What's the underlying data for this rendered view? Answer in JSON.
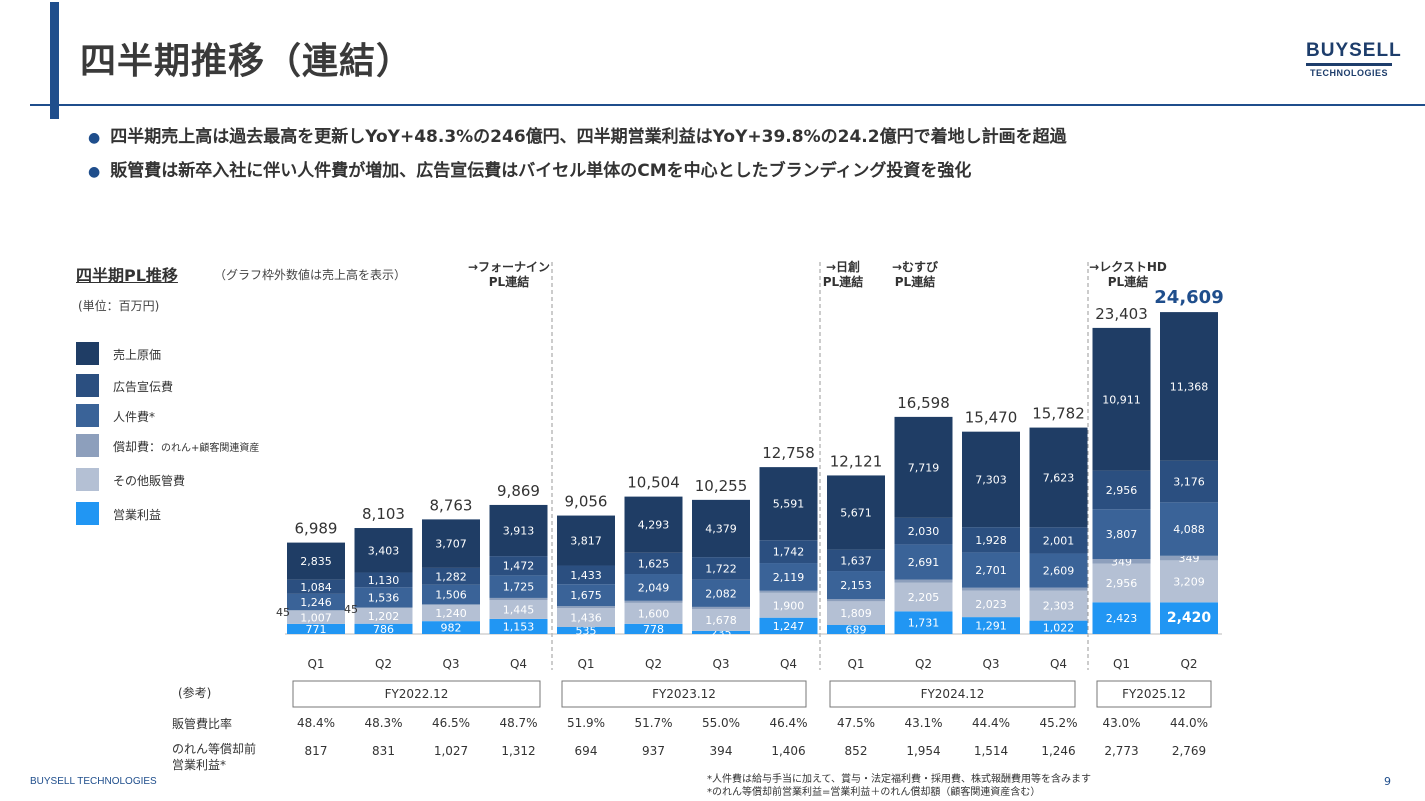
{
  "header": {
    "title": "四半期推移（連結）"
  },
  "logo": {
    "line1": "BUYSELL",
    "line2": "TECHNOLOGIES"
  },
  "bullets": [
    "四半期売上高は過去最高を更新しYoY+48.3%の246億円、四半期営業利益はYoY+39.8%の24.2億円で着地し計画を超過",
    "販管費は新卒入社に伴い人件費が増加、広告宣伝費はバイセル単体のCMを中心としたブランディング投資を強化"
  ],
  "chart_header": {
    "title": "四半期PL推移",
    "note": "（グラフ枠外数値は売上高を表示）",
    "unit": "(単位：百万円)"
  },
  "legend": [
    {
      "label": "売上原価",
      "color": "#1f3d65"
    },
    {
      "label": "広告宣伝費",
      "color": "#2b4f80"
    },
    {
      "label": "人件費*",
      "color": "#3a6398"
    },
    {
      "label": "償却費：",
      "sub": "のれん+顧客関連資産",
      "color": "#8d9fbc"
    },
    {
      "label": "その他販管費",
      "color": "#b4c0d4"
    },
    {
      "label": "営業利益",
      "color": "#2196f3"
    }
  ],
  "events": [
    {
      "line1": "→フォーナイン",
      "line2": "PL連結"
    },
    {
      "line1": "→日創",
      "line2": "PL連結"
    },
    {
      "line1": "→むすび",
      "line2": "PL連結"
    },
    {
      "line1": "→レクストHD",
      "line2": "PL連結"
    }
  ],
  "chart_data": {
    "type": "bar",
    "stacked": true,
    "categories": [
      "Q1",
      "Q2",
      "Q3",
      "Q4",
      "Q1",
      "Q2",
      "Q3",
      "Q4",
      "Q1",
      "Q2",
      "Q3",
      "Q4",
      "Q1",
      "Q2"
    ],
    "fiscal_years": [
      {
        "label": "FY2022.12",
        "quarters": 4
      },
      {
        "label": "FY2023.12",
        "quarters": 4
      },
      {
        "label": "FY2024.12",
        "quarters": 4
      },
      {
        "label": "FY2025.12",
        "quarters": 2
      }
    ],
    "totals": [
      6989,
      8103,
      8763,
      9869,
      9056,
      10504,
      10255,
      12758,
      12121,
      16598,
      15470,
      15782,
      23403,
      24609
    ],
    "series": [
      {
        "name": "営業利益",
        "color": "#2196f3",
        "values": [
          771,
          786,
          982,
          1153,
          535,
          778,
          235,
          1247,
          689,
          1731,
          1291,
          1022,
          2423,
          2420
        ]
      },
      {
        "name": "その他販管費",
        "color": "#b4c0d4",
        "values": [
          1007,
          1202,
          1240,
          1445,
          1436,
          1600,
          1678,
          1900,
          1809,
          2205,
          2023,
          2303,
          2956,
          3209
        ]
      },
      {
        "name": "償却費",
        "color": "#8d9fbc",
        "values": [
          45,
          45,
          45,
          159,
          159,
          159,
          159,
          159,
          163,
          223,
          223,
          223,
          349,
          349
        ]
      },
      {
        "name": "人件費",
        "color": "#3a6398",
        "values": [
          1246,
          1536,
          1506,
          1725,
          1675,
          2049,
          2082,
          2119,
          2153,
          2691,
          2701,
          2609,
          3807,
          4088
        ]
      },
      {
        "name": "広告宣伝費",
        "color": "#2b4f80",
        "values": [
          1084,
          1130,
          1282,
          1472,
          1433,
          1625,
          1722,
          1742,
          1637,
          2030,
          1928,
          2001,
          2956,
          3176
        ]
      },
      {
        "name": "売上原価",
        "color": "#1f3d65",
        "values": [
          2835,
          3403,
          3707,
          3913,
          3817,
          4293,
          4379,
          5591,
          5671,
          7719,
          7303,
          7623,
          10911,
          11368
        ]
      }
    ],
    "total_labels": [
      "6,989",
      "8,103",
      "8,763",
      "9,869",
      "9,056",
      "10,504",
      "10,255",
      "12,758",
      "12,121",
      "16,598",
      "15,470",
      "15,782",
      "23,403",
      "24,609"
    ],
    "segment_labels": [
      [
        "771",
        "1,007",
        "45",
        "1,246",
        "1,084",
        "2,835"
      ],
      [
        "786",
        "1,202",
        "45",
        "1,536",
        "1,130",
        "3,403"
      ],
      [
        "982",
        "1,240",
        "45",
        "1,506",
        "1,282",
        "3,707"
      ],
      [
        "1,153",
        "1,445",
        "159",
        "1,725",
        "1,472",
        "3,913"
      ],
      [
        "535",
        "1,436",
        "159",
        "1,675",
        "1,433",
        "3,817"
      ],
      [
        "778",
        "1,600",
        "159",
        "2,049",
        "1,625",
        "4,293"
      ],
      [
        "235",
        "1,678",
        "159",
        "2,082",
        "1,722",
        "4,379"
      ],
      [
        "1,247",
        "1,900",
        "159",
        "2,119",
        "1,742",
        "5,591"
      ],
      [
        "689",
        "1,809",
        "163",
        "2,153",
        "1,637",
        "5,671"
      ],
      [
        "1,731",
        "2,205",
        "223",
        "2,691",
        "2,030",
        "7,719"
      ],
      [
        "1,291",
        "2,023",
        "223",
        "2,701",
        "1,928",
        "7,303"
      ],
      [
        "1,022",
        "2,303",
        "223",
        "2,609",
        "2,001",
        "7,623"
      ],
      [
        "2,423",
        "2,956",
        "349",
        "3,807",
        "2,956",
        "10,911"
      ],
      [
        "2,420",
        "3,209",
        "349",
        "4,088",
        "3,176",
        "11,368"
      ]
    ],
    "reference": {
      "label": "(参考)",
      "sga_ratio_label": "販管費比率",
      "sga_ratio": [
        "48.4%",
        "48.3%",
        "46.5%",
        "48.7%",
        "51.9%",
        "51.7%",
        "55.0%",
        "46.4%",
        "47.5%",
        "43.1%",
        "44.4%",
        "45.2%",
        "43.0%",
        "44.0%"
      ],
      "pre_amort_label": "のれん等償却前",
      "pre_amort_label2": "営業利益*",
      "pre_amort": [
        "817",
        "831",
        "1,027",
        "1,312",
        "694",
        "937",
        "394",
        "1,406",
        "852",
        "1,954",
        "1,514",
        "1,246",
        "2,773",
        "2,769"
      ]
    }
  },
  "footer": {
    "company": "BUYSELL TECHNOLOGIES",
    "note1": "*人件費は給与手当に加えて、賞与・法定福利費・採用費、株式報酬費用等を含みます",
    "note2": "*のれん等償却前営業利益=営業利益＋のれん償却額（顧客関連資産含む）",
    "page": "9"
  }
}
